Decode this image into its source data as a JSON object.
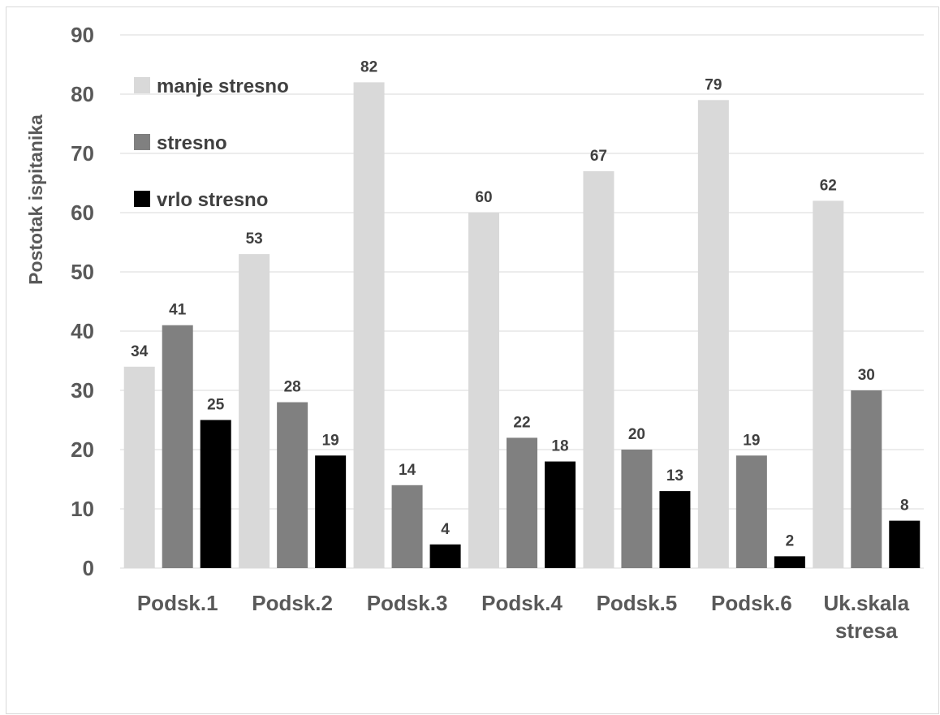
{
  "chart_data": {
    "type": "bar",
    "ylabel": "Postotak ispitanika",
    "xlabel": "",
    "ylim": [
      0,
      90
    ],
    "yticks": [
      0,
      10,
      20,
      30,
      40,
      50,
      60,
      70,
      80,
      90
    ],
    "grid": true,
    "legend_position": "top-left",
    "categories": [
      [
        "Podsk.1"
      ],
      [
        "Podsk.2"
      ],
      [
        "Podsk.3"
      ],
      [
        "Podsk.4"
      ],
      [
        "Podsk.5"
      ],
      [
        "Podsk.6"
      ],
      [
        "Uk.skala",
        "stresa"
      ]
    ],
    "series": [
      {
        "name": "manje stresno",
        "color": "#d9d9d9",
        "values": [
          34,
          53,
          82,
          60,
          67,
          79,
          62
        ]
      },
      {
        "name": "stresno",
        "color": "#808080",
        "values": [
          41,
          28,
          14,
          22,
          20,
          19,
          30
        ]
      },
      {
        "name": "vrlo stresno",
        "color": "#000000",
        "values": [
          25,
          19,
          4,
          18,
          13,
          2,
          8
        ]
      }
    ]
  }
}
